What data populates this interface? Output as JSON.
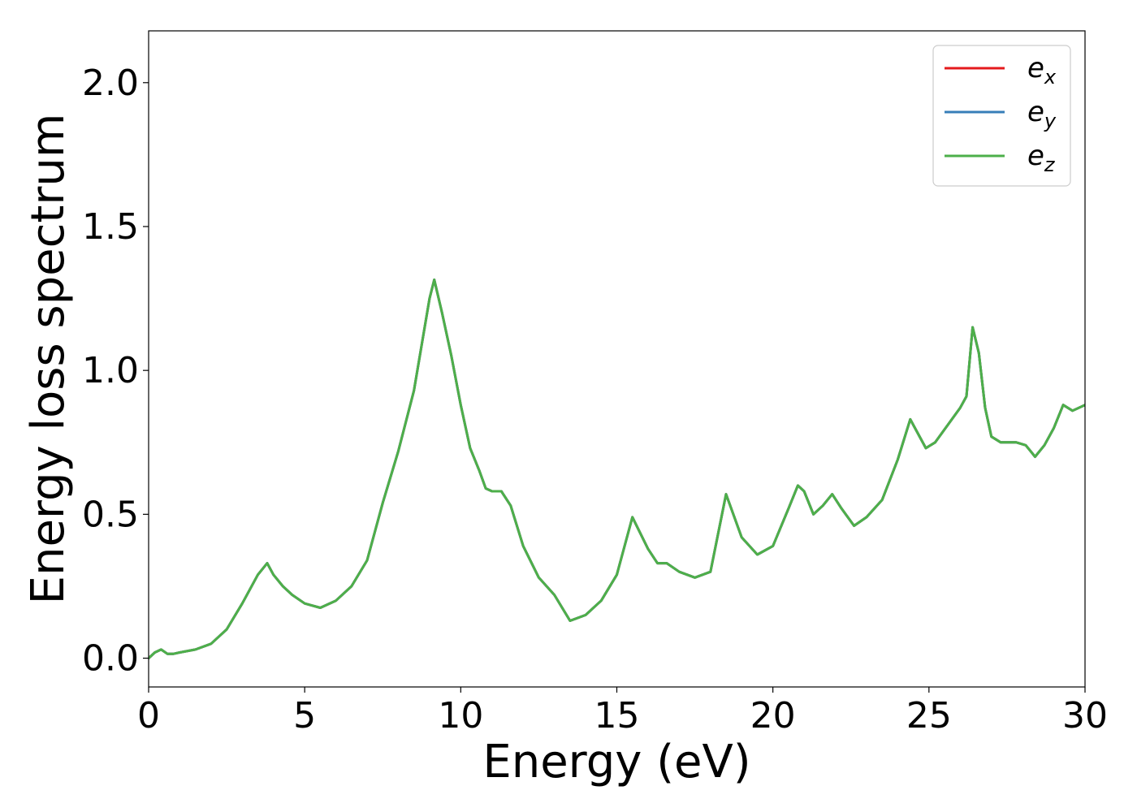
{
  "chart_data": {
    "type": "line",
    "xlabel": "Energy (eV)",
    "ylabel": "Energy loss spectrum",
    "xlim": [
      0,
      30
    ],
    "ylim": [
      -0.1,
      2.18
    ],
    "xticks": [
      0,
      5,
      10,
      15,
      20,
      25,
      30
    ],
    "xtick_labels": [
      "0",
      "5",
      "10",
      "15",
      "20",
      "25",
      "30"
    ],
    "yticks": [
      0.0,
      0.5,
      1.0,
      1.5,
      2.0
    ],
    "ytick_labels": [
      "0.0",
      "0.5",
      "1.0",
      "1.5",
      "2.0"
    ],
    "grid": false,
    "legend_position": "top-right",
    "x": [
      0,
      0.2,
      0.4,
      0.6,
      0.8,
      1.0,
      1.5,
      2.0,
      2.5,
      3.0,
      3.5,
      3.8,
      4.0,
      4.3,
      4.6,
      5.0,
      5.5,
      6.0,
      6.5,
      7.0,
      7.5,
      8.0,
      8.5,
      9.0,
      9.15,
      9.4,
      9.7,
      10.0,
      10.3,
      10.6,
      10.8,
      11.0,
      11.3,
      11.6,
      12.0,
      12.5,
      13.0,
      13.5,
      14.0,
      14.5,
      15.0,
      15.5,
      16.0,
      16.3,
      16.6,
      17.0,
      17.5,
      18.0,
      18.5,
      19.0,
      19.5,
      20.0,
      20.5,
      20.8,
      21.0,
      21.3,
      21.6,
      21.9,
      22.2,
      22.6,
      23.0,
      23.5,
      24.0,
      24.4,
      24.6,
      24.9,
      25.2,
      25.6,
      26.0,
      26.2,
      26.4,
      26.6,
      26.8,
      27.0,
      27.3,
      27.8,
      28.1,
      28.4,
      28.7,
      29.0,
      29.3,
      29.6,
      30.0
    ],
    "series": [
      {
        "name": "e_x",
        "color": "#e41a1c",
        "values": [
          0.0,
          0.02,
          0.03,
          0.015,
          0.015,
          0.02,
          0.03,
          0.05,
          0.1,
          0.19,
          0.29,
          0.33,
          0.29,
          0.25,
          0.22,
          0.19,
          0.175,
          0.2,
          0.25,
          0.34,
          0.54,
          0.72,
          0.93,
          1.25,
          1.315,
          1.2,
          1.05,
          0.88,
          0.73,
          0.65,
          0.59,
          0.58,
          0.58,
          0.53,
          0.39,
          0.28,
          0.22,
          0.13,
          0.15,
          0.2,
          0.29,
          0.49,
          0.38,
          0.33,
          0.33,
          0.3,
          0.28,
          0.3,
          0.57,
          0.42,
          0.36,
          0.39,
          0.52,
          0.6,
          0.58,
          0.5,
          0.53,
          0.57,
          0.52,
          0.46,
          0.49,
          0.55,
          0.69,
          0.83,
          0.79,
          0.73,
          0.75,
          0.81,
          0.87,
          0.91,
          1.15,
          1.06,
          0.87,
          0.77,
          0.75,
          0.75,
          0.74,
          0.7,
          0.74,
          0.8,
          0.88,
          0.86,
          0.88
        ]
      },
      {
        "name": "e_y",
        "color": "#377eb8",
        "values": [
          0.0,
          0.02,
          0.03,
          0.015,
          0.015,
          0.02,
          0.03,
          0.05,
          0.1,
          0.19,
          0.29,
          0.33,
          0.29,
          0.25,
          0.22,
          0.19,
          0.175,
          0.2,
          0.25,
          0.34,
          0.54,
          0.72,
          0.93,
          1.25,
          1.315,
          1.2,
          1.05,
          0.88,
          0.73,
          0.65,
          0.59,
          0.58,
          0.58,
          0.53,
          0.39,
          0.28,
          0.22,
          0.13,
          0.15,
          0.2,
          0.29,
          0.49,
          0.38,
          0.33,
          0.33,
          0.3,
          0.28,
          0.3,
          0.57,
          0.42,
          0.36,
          0.39,
          0.52,
          0.6,
          0.58,
          0.5,
          0.53,
          0.57,
          0.52,
          0.46,
          0.49,
          0.55,
          0.69,
          0.83,
          0.79,
          0.73,
          0.75,
          0.81,
          0.87,
          0.91,
          1.15,
          1.06,
          0.87,
          0.77,
          0.75,
          0.75,
          0.74,
          0.7,
          0.74,
          0.8,
          0.88,
          0.86,
          0.88
        ]
      },
      {
        "name": "e_z",
        "color": "#4daf4a",
        "values": [
          0.0,
          0.02,
          0.03,
          0.015,
          0.015,
          0.02,
          0.03,
          0.05,
          0.1,
          0.19,
          0.29,
          0.33,
          0.29,
          0.25,
          0.22,
          0.19,
          0.175,
          0.2,
          0.25,
          0.34,
          0.54,
          0.72,
          0.93,
          1.25,
          1.315,
          1.2,
          1.05,
          0.88,
          0.73,
          0.65,
          0.59,
          0.58,
          0.58,
          0.53,
          0.39,
          0.28,
          0.22,
          0.13,
          0.15,
          0.2,
          0.29,
          0.49,
          0.38,
          0.33,
          0.33,
          0.3,
          0.28,
          0.3,
          0.57,
          0.42,
          0.36,
          0.39,
          0.52,
          0.6,
          0.58,
          0.5,
          0.53,
          0.57,
          0.52,
          0.46,
          0.49,
          0.55,
          0.69,
          0.83,
          0.79,
          0.73,
          0.75,
          0.81,
          0.87,
          0.91,
          1.15,
          1.06,
          0.87,
          0.77,
          0.75,
          0.75,
          0.74,
          0.7,
          0.74,
          0.8,
          0.88,
          0.86,
          0.88
        ]
      }
    ],
    "legend": [
      {
        "base": "e",
        "sub": "x",
        "color": "#e41a1c"
      },
      {
        "base": "e",
        "sub": "y",
        "color": "#377eb8"
      },
      {
        "base": "e",
        "sub": "z",
        "color": "#4daf4a"
      }
    ]
  }
}
